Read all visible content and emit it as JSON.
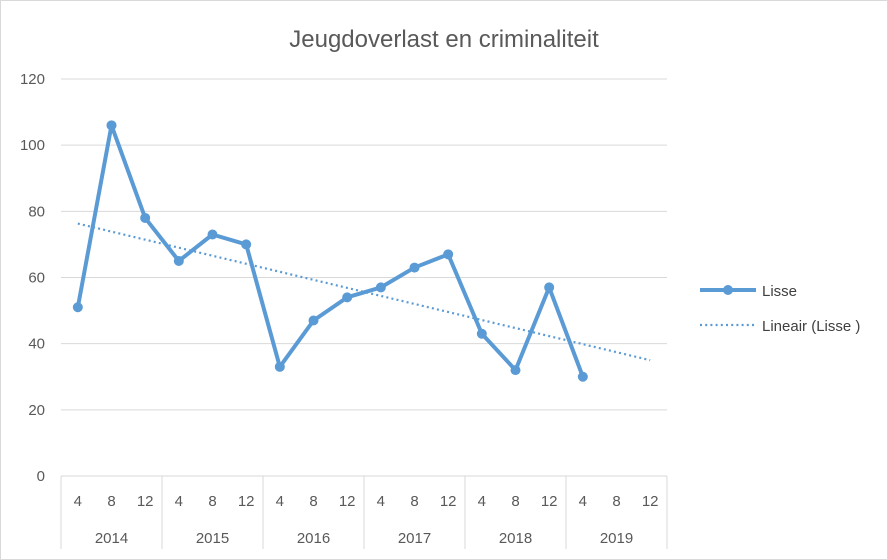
{
  "chart_data": {
    "type": "line",
    "title": "Jeugdoverlast en criminaliteit",
    "xlabel": "",
    "ylabel": "",
    "ylim": [
      0,
      120
    ],
    "yticks": [
      0,
      20,
      40,
      60,
      80,
      100,
      120
    ],
    "grid": true,
    "legend_position": "right",
    "categories": [
      {
        "year": "2014",
        "month": "4"
      },
      {
        "year": "2014",
        "month": "8"
      },
      {
        "year": "2014",
        "month": "12"
      },
      {
        "year": "2015",
        "month": "4"
      },
      {
        "year": "2015",
        "month": "8"
      },
      {
        "year": "2015",
        "month": "12"
      },
      {
        "year": "2016",
        "month": "4"
      },
      {
        "year": "2016",
        "month": "8"
      },
      {
        "year": "2016",
        "month": "12"
      },
      {
        "year": "2017",
        "month": "4"
      },
      {
        "year": "2017",
        "month": "8"
      },
      {
        "year": "2017",
        "month": "12"
      },
      {
        "year": "2018",
        "month": "4"
      },
      {
        "year": "2018",
        "month": "8"
      },
      {
        "year": "2018",
        "month": "12"
      },
      {
        "year": "2019",
        "month": "4"
      },
      {
        "year": "2019",
        "month": "8"
      },
      {
        "year": "2019",
        "month": "12"
      }
    ],
    "years": [
      "2014",
      "2015",
      "2016",
      "2017",
      "2018",
      "2019"
    ],
    "series": [
      {
        "name": "Lisse",
        "color": "#5b9bd5",
        "values": [
          51,
          106,
          78,
          65,
          73,
          70,
          33,
          47,
          54,
          57,
          63,
          67,
          43,
          32,
          57,
          30,
          null,
          null
        ]
      }
    ],
    "trendline": {
      "name": "Lineair (Lisse )",
      "type": "linear",
      "color": "#5b9bd5",
      "start": 76.3,
      "end": 35.0
    }
  }
}
